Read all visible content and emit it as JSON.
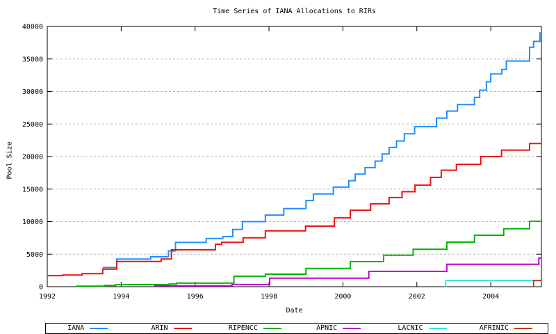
{
  "chart_data": {
    "type": "line",
    "style": "step",
    "title": "Time Series of IANA Allocations to RIRs",
    "xlabel": "Date",
    "ylabel": "Pool Size",
    "x_range": [
      1992,
      2005.37
    ],
    "y_range": [
      0,
      40000
    ],
    "x_ticks": [
      1992,
      1994,
      1996,
      1998,
      2000,
      2002,
      2004
    ],
    "y_ticks": [
      0,
      5000,
      10000,
      15000,
      20000,
      25000,
      30000,
      35000,
      40000
    ],
    "grid": "horizontal-dashed",
    "legend_position": "bottom",
    "series": [
      {
        "name": "IANA",
        "color": "#1e8fff",
        "start_at_zero": false,
        "points": [
          [
            1993.5,
            2950
          ],
          [
            1993.88,
            4250
          ],
          [
            1994.8,
            4600
          ],
          [
            1995.28,
            5500
          ],
          [
            1995.47,
            6800
          ],
          [
            1996.3,
            7400
          ],
          [
            1996.75,
            7700
          ],
          [
            1997.02,
            8800
          ],
          [
            1997.28,
            10000
          ],
          [
            1997.9,
            11000
          ],
          [
            1998.4,
            12000
          ],
          [
            1999.0,
            13250
          ],
          [
            1999.2,
            14250
          ],
          [
            1999.74,
            15300
          ],
          [
            2000.16,
            16300
          ],
          [
            2000.33,
            17300
          ],
          [
            2000.6,
            18300
          ],
          [
            2000.87,
            19300
          ],
          [
            2001.06,
            20400
          ],
          [
            2001.25,
            21400
          ],
          [
            2001.45,
            22400
          ],
          [
            2001.66,
            23500
          ],
          [
            2001.94,
            24600
          ],
          [
            2002.53,
            25900
          ],
          [
            2002.81,
            27000
          ],
          [
            2003.1,
            28000
          ],
          [
            2003.56,
            29100
          ],
          [
            2003.7,
            30200
          ],
          [
            2003.88,
            31500
          ],
          [
            2004.0,
            32700
          ],
          [
            2004.3,
            33400
          ],
          [
            2004.42,
            34700
          ],
          [
            2005.05,
            36800
          ],
          [
            2005.16,
            37700
          ],
          [
            2005.33,
            39000
          ]
        ]
      },
      {
        "name": "ARIN",
        "color": "#ee1010",
        "start_at_zero": false,
        "points": [
          [
            1992.0,
            1700
          ],
          [
            1992.42,
            1800
          ],
          [
            1992.94,
            2000
          ],
          [
            1993.5,
            2700
          ],
          [
            1993.88,
            3880
          ],
          [
            1995.08,
            4250
          ],
          [
            1995.36,
            5670
          ],
          [
            1996.55,
            6520
          ],
          [
            1996.72,
            6810
          ],
          [
            1997.3,
            7520
          ],
          [
            1997.9,
            8590
          ],
          [
            1998.99,
            9300
          ],
          [
            1999.77,
            10580
          ],
          [
            2000.2,
            11750
          ],
          [
            2000.75,
            12740
          ],
          [
            2001.25,
            13700
          ],
          [
            2001.6,
            14600
          ],
          [
            2001.95,
            15600
          ],
          [
            2002.37,
            16800
          ],
          [
            2002.66,
            17900
          ],
          [
            2003.07,
            18800
          ],
          [
            2003.73,
            20000
          ],
          [
            2004.29,
            21000
          ],
          [
            2005.05,
            22000
          ]
        ]
      },
      {
        "name": "RIPENCC",
        "color": "#00b400",
        "start_at_zero": true,
        "points": [
          [
            1992.8,
            80
          ],
          [
            1993.55,
            180
          ],
          [
            1993.85,
            320
          ],
          [
            1995.3,
            420
          ],
          [
            1995.5,
            550
          ],
          [
            1997.05,
            1600
          ],
          [
            1997.9,
            1925
          ],
          [
            1999.0,
            2815
          ],
          [
            2000.2,
            3850
          ],
          [
            2001.1,
            4850
          ],
          [
            2001.9,
            5750
          ],
          [
            2002.81,
            6850
          ],
          [
            2003.56,
            7900
          ],
          [
            2004.35,
            8900
          ],
          [
            2005.05,
            10050
          ]
        ]
      },
      {
        "name": "APNIC",
        "color": "#c000d0",
        "start_at_zero": true,
        "points": [
          [
            1994.9,
            120
          ],
          [
            1997.0,
            330
          ],
          [
            1998.02,
            1300
          ],
          [
            2000.7,
            2350
          ],
          [
            2002.81,
            3450
          ],
          [
            2005.3,
            4400
          ]
        ]
      },
      {
        "name": "LACNIC",
        "color": "#33e6e6",
        "start_at_zero": true,
        "points": [
          [
            2002.78,
            950
          ]
        ]
      },
      {
        "name": "AFRINIC",
        "color": "#b5411c",
        "start_at_zero": true,
        "points": [
          [
            2005.16,
            950
          ]
        ]
      }
    ]
  },
  "colors": {
    "background": "#ffffff",
    "axis": "#000000",
    "grid": "#b4b4b4",
    "text": "#000000"
  }
}
